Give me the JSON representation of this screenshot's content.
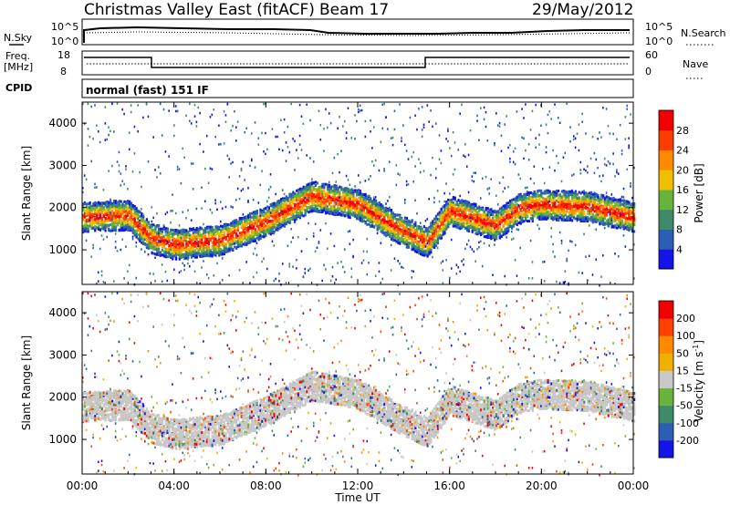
{
  "header": {
    "title": "Christmas Valley East (fitACF)",
    "beam": "Beam 17",
    "date": "29/May/2012"
  },
  "noise_panel": {
    "left_label": "N.Sky",
    "right_label": "N.Search",
    "left_ticks": [
      "10^5",
      "10^0"
    ],
    "right_ticks": [
      "10^5",
      "10^0"
    ]
  },
  "freq_panel": {
    "left_label": "Freq.",
    "left_unit": "[MHz]",
    "right_label": "Nave",
    "left_ticks": [
      "18",
      "8"
    ],
    "right_ticks": [
      "60",
      "0"
    ]
  },
  "cpid_panel": {
    "label": "CPID",
    "text": "normal (fast) 151 IF"
  },
  "colors": {
    "power": [
      "#1414e6",
      "#2a5fb3",
      "#3f8a6a",
      "#66b43c",
      "#f0c000",
      "#ff8a00",
      "#ff3c00",
      "#f00000"
    ],
    "velocity": [
      "#1414e6",
      "#2a5fb3",
      "#3f8a6a",
      "#66b43c",
      "#c8c8c8",
      "#f0b000",
      "#ff8a00",
      "#ff4000",
      "#f00000"
    ]
  },
  "chart_data": [
    {
      "type": "heatmap",
      "name": "power",
      "ylabel": "Slant Range [km]",
      "yticks": [
        1000,
        2000,
        3000,
        4000
      ],
      "ylim": [
        180,
        4500
      ],
      "colorbar_label": "Power [dB]",
      "colorbar_ticks": [
        "4",
        "8",
        "12",
        "16",
        "20",
        "24",
        "28"
      ],
      "approx_band_center_km": {
        "x_hours": [
          0,
          2,
          3,
          4,
          6,
          8,
          10,
          12,
          13.5,
          15,
          16,
          18,
          19,
          20,
          22,
          24
        ],
        "range_km": [
          1800,
          1850,
          1300,
          1150,
          1250,
          1700,
          2300,
          2100,
          1600,
          1200,
          1950,
          1600,
          2000,
          2100,
          2050,
          1800
        ]
      }
    },
    {
      "type": "heatmap",
      "name": "velocity",
      "ylabel": "Slant Range [km]",
      "yticks": [
        1000,
        2000,
        3000,
        4000
      ],
      "ylim": [
        180,
        4500
      ],
      "colorbar_label": "Velocity [m s^-1]",
      "colorbar_ticks": [
        "200",
        "100",
        "50",
        "15",
        "-15",
        "-50",
        "-100",
        "-200"
      ]
    }
  ],
  "x_axis": {
    "label": "Time UT",
    "ticks": [
      "00:00",
      "04:00",
      "08:00",
      "12:00",
      "16:00",
      "20:00",
      "00:00"
    ],
    "xlim_hours": [
      0,
      24
    ]
  }
}
